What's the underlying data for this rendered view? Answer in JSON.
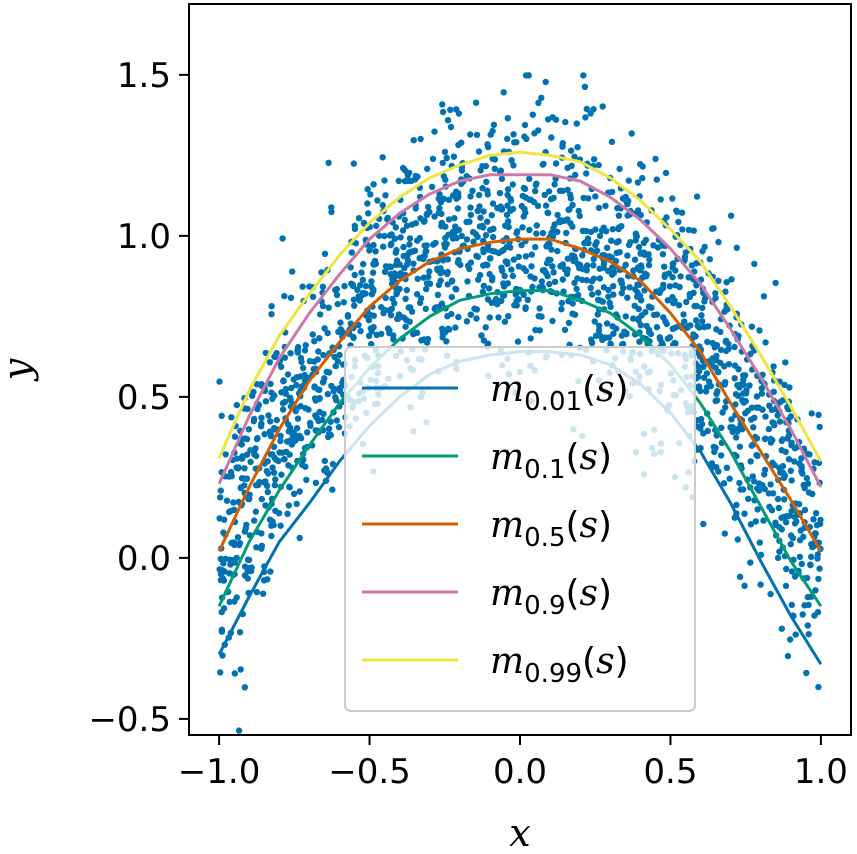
{
  "chart_data": {
    "type": "scatter",
    "title": "",
    "xlabel": "x",
    "ylabel": "y",
    "xlim": [
      -1.1,
      1.1
    ],
    "ylim": [
      -0.55,
      1.72
    ],
    "x_ticks": [
      -1.0,
      -0.5,
      0.0,
      0.5,
      1.0
    ],
    "x_tick_labels": [
      "−1.0",
      "−0.5",
      "0.0",
      "0.5",
      "1.0"
    ],
    "y_ticks": [
      -0.5,
      0.0,
      0.5,
      1.0,
      1.5
    ],
    "y_tick_labels": [
      "−0.5",
      "0.0",
      "0.5",
      "1.0",
      "1.5"
    ],
    "grid": false,
    "legend_position": "lower center",
    "scatter": {
      "color": "#0072b2",
      "approx_count": 2000,
      "description_mean": "y ≈ 1 − x² with noise (sd ≈ 0.2)"
    },
    "series": [
      {
        "name": "m",
        "subscript": "0.01",
        "color": "#0072b2",
        "x": [
          -1.0,
          -0.9,
          -0.8,
          -0.7,
          -0.6,
          -0.5,
          -0.4,
          -0.3,
          -0.2,
          -0.1,
          0.0,
          0.1,
          0.2,
          0.3,
          0.4,
          0.5,
          0.6,
          0.7,
          0.8,
          0.9,
          1.0
        ],
        "y": [
          -0.3,
          -0.12,
          0.05,
          0.17,
          0.3,
          0.41,
          0.5,
          0.57,
          0.61,
          0.63,
          0.64,
          0.64,
          0.63,
          0.6,
          0.54,
          0.45,
          0.33,
          0.17,
          -0.01,
          -0.18,
          -0.33
        ]
      },
      {
        "name": "m",
        "subscript": "0.1",
        "color": "#009e73",
        "x": [
          -1.0,
          -0.9,
          -0.8,
          -0.7,
          -0.6,
          -0.5,
          -0.4,
          -0.3,
          -0.2,
          -0.1,
          0.0,
          0.1,
          0.2,
          0.3,
          0.4,
          0.5,
          0.6,
          0.7,
          0.8,
          0.9,
          1.0
        ],
        "y": [
          -0.15,
          0.05,
          0.21,
          0.35,
          0.48,
          0.59,
          0.68,
          0.75,
          0.8,
          0.82,
          0.83,
          0.83,
          0.8,
          0.76,
          0.69,
          0.6,
          0.48,
          0.33,
          0.16,
          -0.01,
          -0.15
        ]
      },
      {
        "name": "m",
        "subscript": "0.5",
        "color": "#d55e00",
        "x": [
          -1.0,
          -0.9,
          -0.8,
          -0.7,
          -0.6,
          -0.5,
          -0.4,
          -0.3,
          -0.2,
          -0.1,
          0.0,
          0.1,
          0.2,
          0.3,
          0.4,
          0.5,
          0.6,
          0.7,
          0.8,
          0.9,
          1.0
        ],
        "y": [
          0.02,
          0.22,
          0.4,
          0.55,
          0.67,
          0.78,
          0.86,
          0.92,
          0.96,
          0.98,
          0.99,
          0.99,
          0.96,
          0.92,
          0.86,
          0.76,
          0.64,
          0.48,
          0.33,
          0.18,
          0.02
        ]
      },
      {
        "name": "m",
        "subscript": "0.9",
        "color": "#cc79a7",
        "x": [
          -1.0,
          -0.9,
          -0.8,
          -0.7,
          -0.6,
          -0.5,
          -0.4,
          -0.3,
          -0.2,
          -0.1,
          0.0,
          0.1,
          0.2,
          0.3,
          0.4,
          0.5,
          0.6,
          0.7,
          0.8,
          0.9,
          1.0
        ],
        "y": [
          0.23,
          0.44,
          0.62,
          0.76,
          0.88,
          0.99,
          1.07,
          1.13,
          1.17,
          1.19,
          1.19,
          1.19,
          1.17,
          1.12,
          1.05,
          0.96,
          0.85,
          0.71,
          0.56,
          0.4,
          0.22
        ]
      },
      {
        "name": "m",
        "subscript": "0.99",
        "color": "#f0e442",
        "x": [
          -1.0,
          -0.9,
          -0.8,
          -0.7,
          -0.6,
          -0.5,
          -0.4,
          -0.3,
          -0.2,
          -0.1,
          0.0,
          0.1,
          0.2,
          0.3,
          0.4,
          0.5,
          0.6,
          0.7,
          0.8,
          0.9,
          1.0
        ],
        "y": [
          0.31,
          0.52,
          0.69,
          0.82,
          0.94,
          1.04,
          1.12,
          1.18,
          1.22,
          1.25,
          1.26,
          1.25,
          1.23,
          1.18,
          1.11,
          1.02,
          0.92,
          0.78,
          0.63,
          0.47,
          0.3
        ]
      }
    ]
  }
}
